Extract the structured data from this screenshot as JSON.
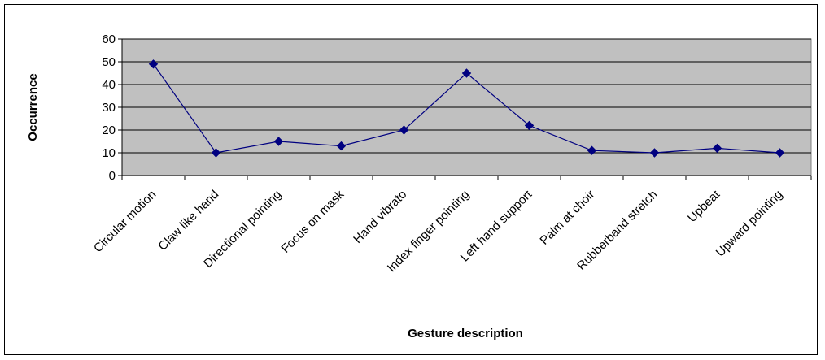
{
  "chart_data": {
    "type": "line",
    "title": "",
    "xlabel": "Gesture description",
    "ylabel": "Occurrence",
    "ylim": [
      0,
      60
    ],
    "yticks": [
      0,
      10,
      20,
      30,
      40,
      50,
      60
    ],
    "grid": true,
    "legend": "none",
    "categories": [
      "Circular motion",
      "Claw like hand",
      "Directional pointing",
      "Focus on mask",
      "Hand vibrato",
      "Index finger pointing",
      "Left hand support",
      "Palm at choir",
      "Rubberband stretch",
      "Upbeat",
      "Upward pointing"
    ],
    "series": [
      {
        "values": [
          49,
          10,
          15,
          13,
          20,
          45,
          22,
          11,
          10,
          12,
          10
        ]
      }
    ],
    "colors": {
      "plot_background": "#c0c0c0",
      "line": "#000080",
      "gridline": "#000000"
    }
  }
}
